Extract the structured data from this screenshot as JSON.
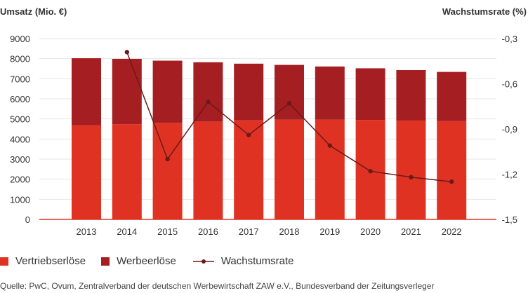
{
  "chart_data": {
    "type": "bar",
    "stacked": true,
    "categories": [
      "2013",
      "2014",
      "2015",
      "2016",
      "2017",
      "2018",
      "2019",
      "2020",
      "2021",
      "2022"
    ],
    "series": [
      {
        "name": "Vertriebserlöse",
        "values": [
          4680,
          4740,
          4810,
          4870,
          4930,
          4960,
          4960,
          4950,
          4920,
          4890
        ],
        "color": "#e03223"
      },
      {
        "name": "Werbeerlöse",
        "values": [
          3340,
          3250,
          3090,
          2950,
          2820,
          2730,
          2650,
          2570,
          2510,
          2450
        ],
        "color": "#a51e22"
      }
    ],
    "line_series": {
      "name": "Wachstumsrate",
      "values": [
        null,
        -0.39,
        -1.1,
        -0.72,
        -0.94,
        -0.73,
        -1.01,
        -1.18,
        -1.22,
        -1.25
      ],
      "color": "#6b1a1a",
      "axis": "right"
    },
    "ylabel_left": "Umsatz (Mio. €)",
    "ylabel_right": "Wachstumsrate (%)",
    "ylim_left": [
      0,
      9000
    ],
    "ylim_right": [
      -1.5,
      -0.3
    ],
    "yticks_left": [
      "0",
      "1000",
      "2000",
      "3000",
      "4000",
      "5000",
      "6000",
      "7000",
      "8000",
      "9000"
    ],
    "yticks_right": [
      "-1,5",
      "-1,2",
      "-0,9",
      "-0,6",
      "-0,3"
    ],
    "grid": true,
    "legend_position": "bottom-left"
  },
  "source": "Quelle: PwC, Ovum, Zentralverband der deutschen Werbewirtschaft ZAW e.V., Bundesverband der Zeitungsverleger"
}
